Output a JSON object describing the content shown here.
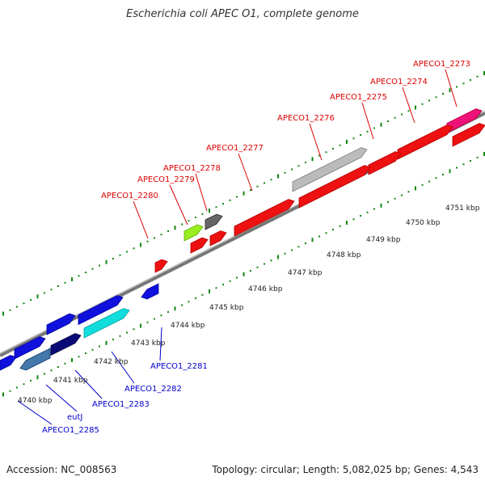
{
  "title": "Escherichia coli APEC O1, complete genome",
  "accession": "Accession: NC_008563",
  "summary": "Topology: circular; Length: 5,082,025 bp; Genes: 4,543",
  "scale_labels": [
    "4740 kbp",
    "4741 kbp",
    "4742 kbp",
    "4743 kbp",
    "4744 kbp",
    "4745 kbp",
    "4746 kbp",
    "4747 kbp",
    "4748 kbp",
    "4749 kbp",
    "4750 kbp",
    "4751 kbp"
  ],
  "colors": {
    "forward_label": "#dd0000",
    "reverse_label": "#0000cc",
    "backbone": "#888888",
    "tick": "#118811"
  },
  "forward_genes": [
    {
      "label": "APECO1_2273",
      "color": "#ee1177"
    },
    {
      "label": "APECO1_2274",
      "color": "#ee1111"
    },
    {
      "label": "APECO1_2275",
      "color": "#ee1111"
    },
    {
      "label": "APECO1_2276",
      "color": "#ee1111"
    },
    {
      "label": "APECO1_2277",
      "color": "#ee1111"
    },
    {
      "label": "APECO1_2278",
      "color": "#666666"
    },
    {
      "label": "APECO1_2279",
      "color": "#99ee22"
    },
    {
      "label": "APECO1_2280",
      "color": "#ee1111"
    }
  ],
  "reverse_genes": [
    {
      "label": "APECO1_2281",
      "color": "#1111dd"
    },
    {
      "label": "APECO1_2282",
      "color": "#11dddd"
    },
    {
      "label": "APECO1_2283",
      "color": "#0a0a77"
    },
    {
      "label": "eutJ",
      "color": "#4477aa"
    },
    {
      "label": "APECO1_2285",
      "color": "#1111dd"
    }
  ]
}
